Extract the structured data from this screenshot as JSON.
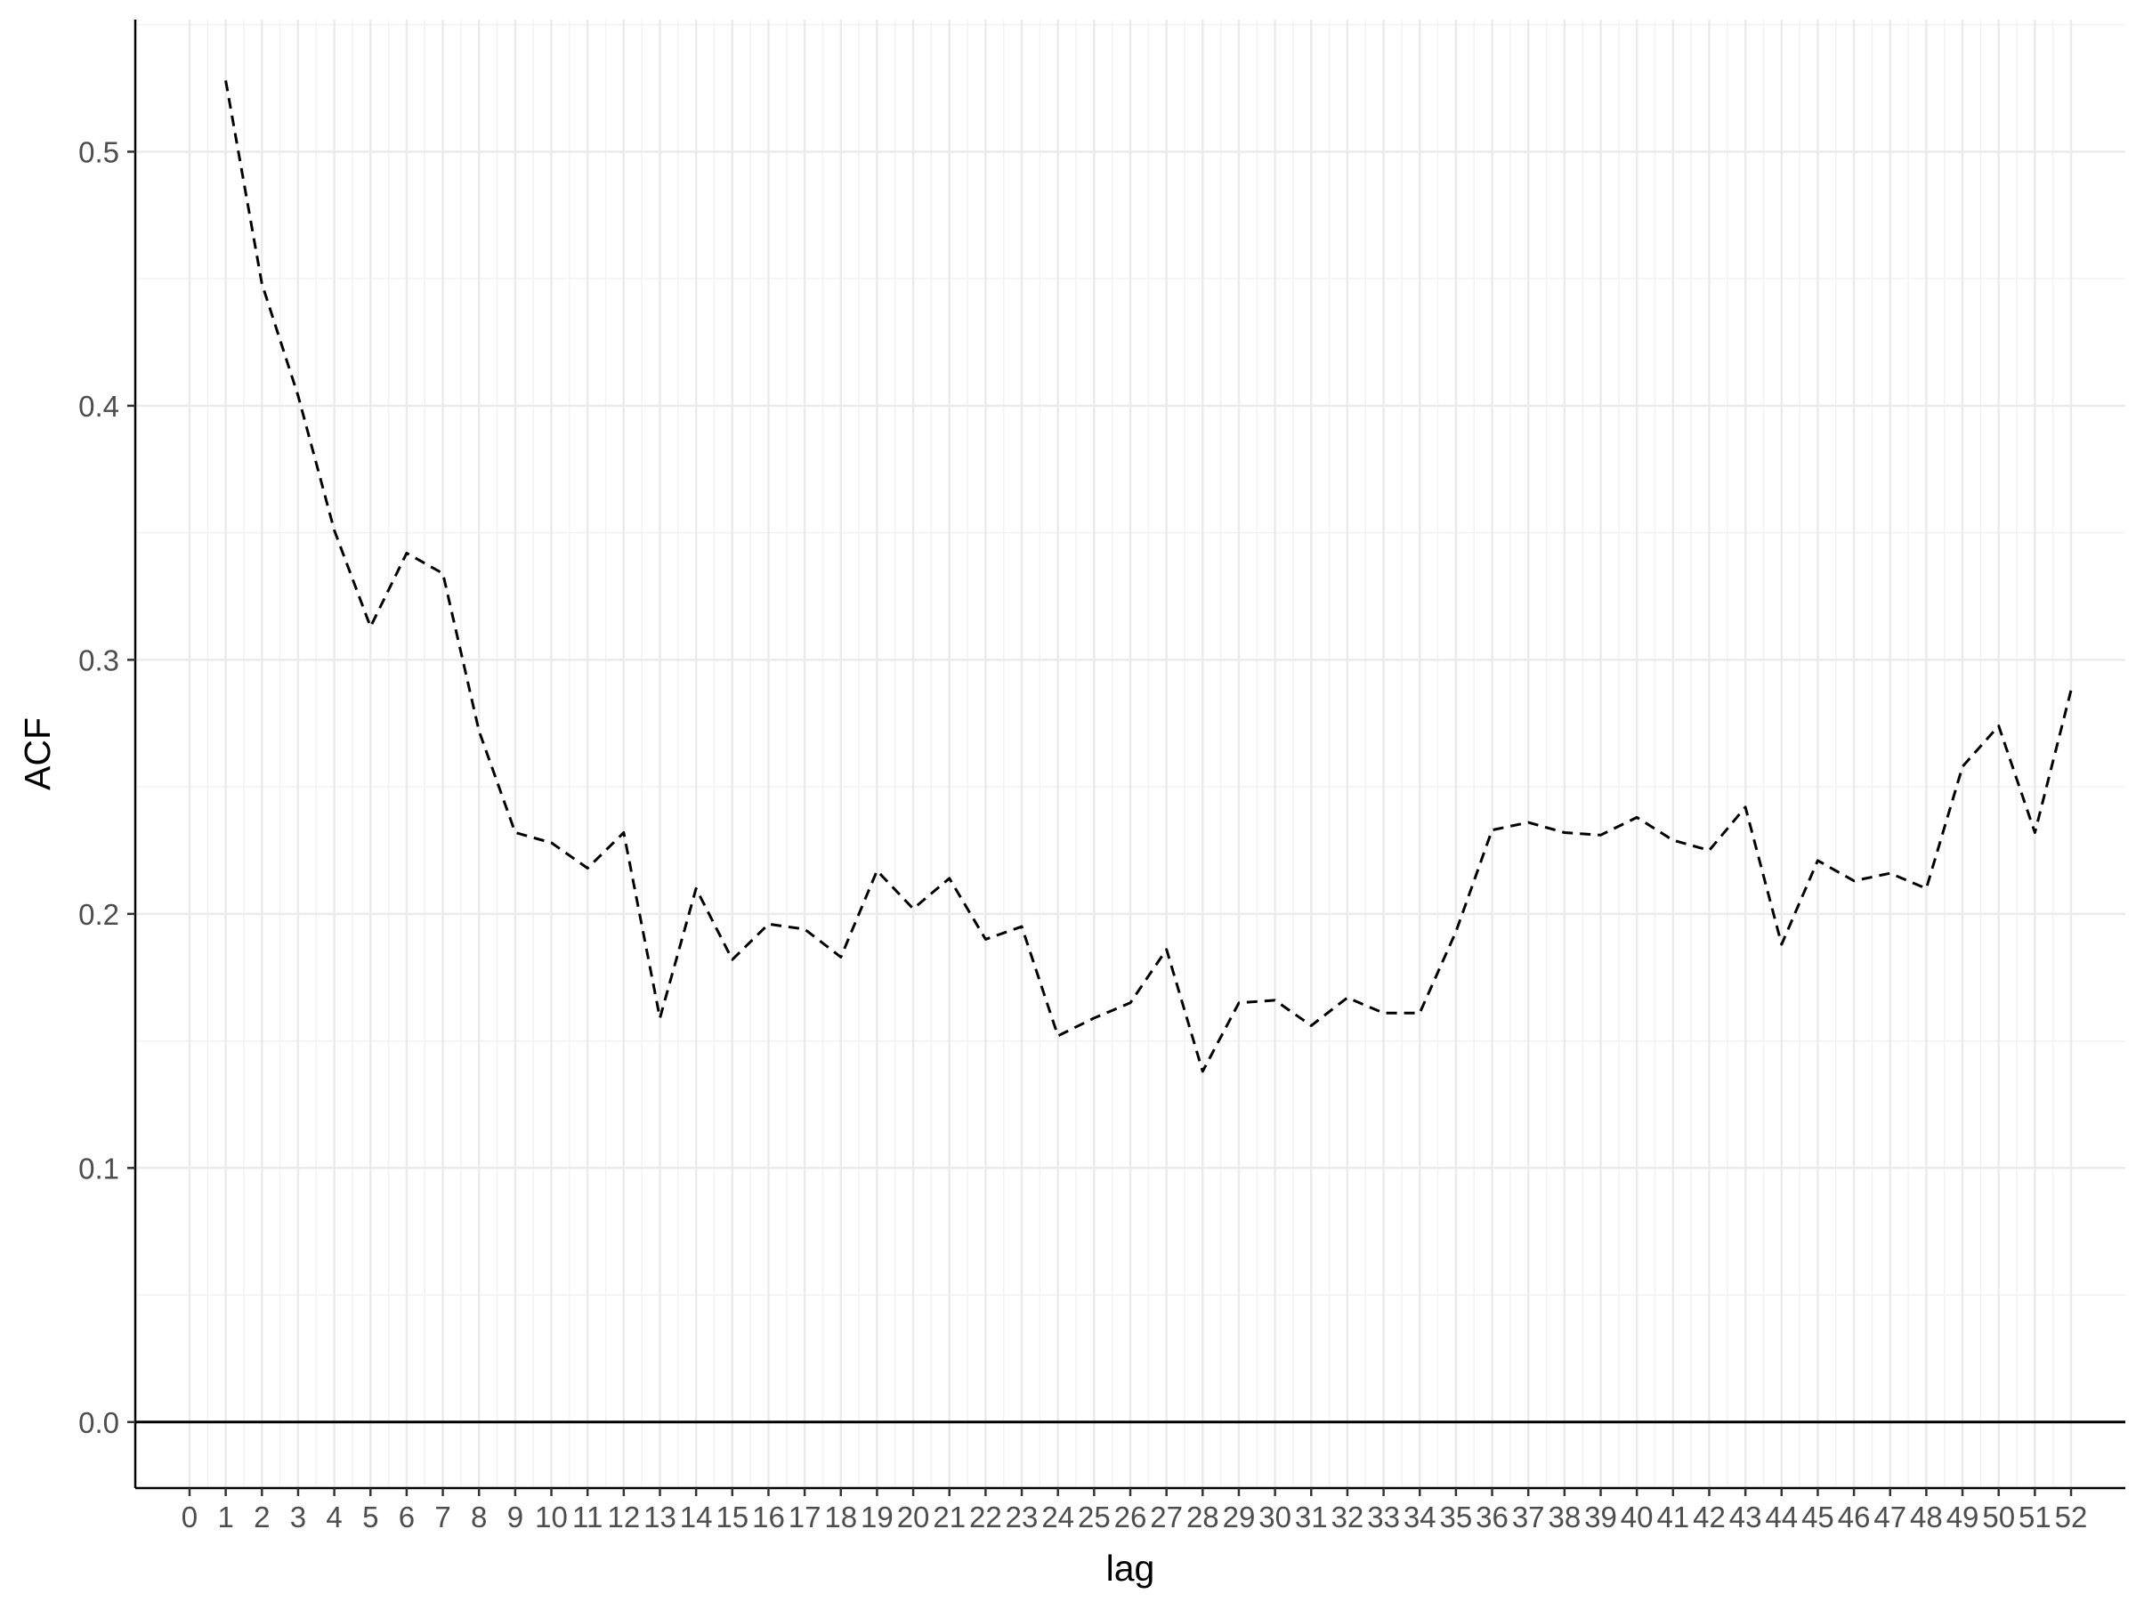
{
  "chart_data": {
    "type": "line",
    "title": "",
    "xlabel": "lag",
    "ylabel": "ACF",
    "x_ticks": [
      0,
      1,
      2,
      3,
      4,
      5,
      6,
      7,
      8,
      9,
      10,
      11,
      12,
      13,
      14,
      15,
      16,
      17,
      18,
      19,
      20,
      21,
      22,
      23,
      24,
      25,
      26,
      27,
      28,
      29,
      30,
      31,
      32,
      33,
      34,
      35,
      36,
      37,
      38,
      39,
      40,
      41,
      42,
      43,
      44,
      45,
      46,
      47,
      48,
      49,
      50,
      51,
      52
    ],
    "x_tick_labels": [
      "0",
      "1",
      "2",
      "3",
      "4",
      "5",
      "6",
      "7",
      "8",
      "9",
      "10",
      "11",
      "12",
      "13",
      "14",
      "15",
      "16",
      "17",
      "18",
      "19",
      "20",
      "21",
      "22",
      "23",
      "24",
      "25",
      "26",
      "27",
      "28",
      "29",
      "30",
      "31",
      "32",
      "33",
      "34",
      "35",
      "36",
      "37",
      "38",
      "39",
      "40",
      "41",
      "42",
      "43",
      "44",
      "45",
      "46",
      "47",
      "48",
      "49",
      "50",
      "51",
      "52"
    ],
    "y_ticks": [
      0.0,
      0.1,
      0.2,
      0.3,
      0.4,
      0.5
    ],
    "y_tick_labels": [
      "0.0",
      "0.1",
      "0.2",
      "0.3",
      "0.4",
      "0.5"
    ],
    "xlim": [
      -1.5,
      53.5
    ],
    "ylim": [
      -0.026,
      0.552
    ],
    "grid": true,
    "legend": "none",
    "reference_line": {
      "y": 0,
      "color": "#000000"
    },
    "line_color": "#000000",
    "line_style": "dashed",
    "series": [
      {
        "x": [
          1,
          2,
          3,
          4,
          5,
          6,
          7,
          8,
          9,
          10,
          11,
          12,
          13,
          14,
          15,
          16,
          17,
          18,
          19,
          20,
          21,
          22,
          23,
          24,
          25,
          26,
          27,
          28,
          29,
          30,
          31,
          32,
          33,
          34,
          35,
          36,
          37,
          38,
          39,
          40,
          41,
          42,
          43,
          44,
          45,
          46,
          47,
          48,
          49,
          50,
          51,
          52
        ],
        "values": [
          0.528,
          0.448,
          0.404,
          0.351,
          0.313,
          0.342,
          0.334,
          0.272,
          0.232,
          0.228,
          0.218,
          0.232,
          0.159,
          0.21,
          0.182,
          0.196,
          0.194,
          0.183,
          0.217,
          0.202,
          0.214,
          0.19,
          0.195,
          0.152,
          0.159,
          0.165,
          0.186,
          0.138,
          0.165,
          0.166,
          0.156,
          0.167,
          0.161,
          0.161,
          0.193,
          0.233,
          0.236,
          0.232,
          0.231,
          0.238,
          0.229,
          0.225,
          0.242,
          0.188,
          0.221,
          0.213,
          0.216,
          0.21,
          0.258,
          0.274,
          0.232,
          0.288
        ]
      }
    ]
  }
}
